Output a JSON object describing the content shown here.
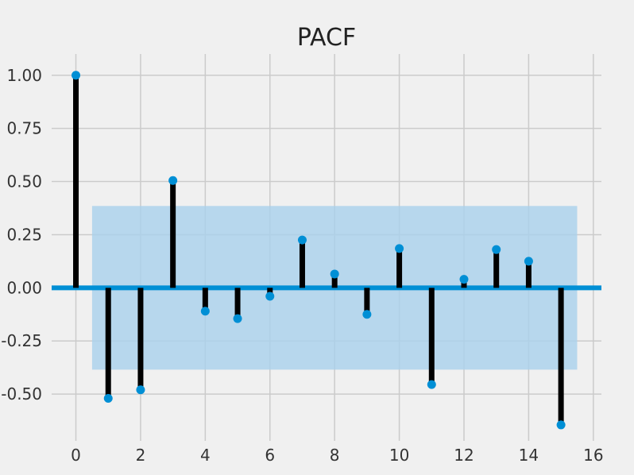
{
  "chart_data": {
    "type": "stem",
    "title": "PACF",
    "xlabel": "",
    "ylabel": "",
    "x": [
      0,
      1,
      2,
      3,
      4,
      5,
      6,
      7,
      8,
      9,
      10,
      11,
      12,
      13,
      14,
      15
    ],
    "values": [
      1.0,
      -0.52,
      -0.48,
      0.505,
      -0.11,
      -0.145,
      -0.04,
      0.225,
      0.065,
      -0.125,
      0.185,
      -0.455,
      0.04,
      0.18,
      0.125,
      -0.645
    ],
    "confidence_band": [
      -0.385,
      0.385
    ],
    "xlim": [
      -0.75,
      16.25
    ],
    "ylim": [
      -0.72,
      1.1
    ],
    "xticks": [
      0,
      2,
      4,
      6,
      8,
      10,
      12,
      14,
      16
    ],
    "yticks": [
      -0.5,
      -0.25,
      0.0,
      0.25,
      0.5,
      0.75,
      1.0
    ],
    "ytick_labels": [
      "-0.50",
      "-0.25",
      "0.00",
      "0.25",
      "0.50",
      "0.75",
      "1.00"
    ],
    "grid": true,
    "colors": {
      "background": "#f0f0f0",
      "marker": "#008fd5",
      "stem": "#000000",
      "zero_line": "#008fd5",
      "band": "#a9d1ec",
      "grid": "#cbcbcb"
    }
  }
}
